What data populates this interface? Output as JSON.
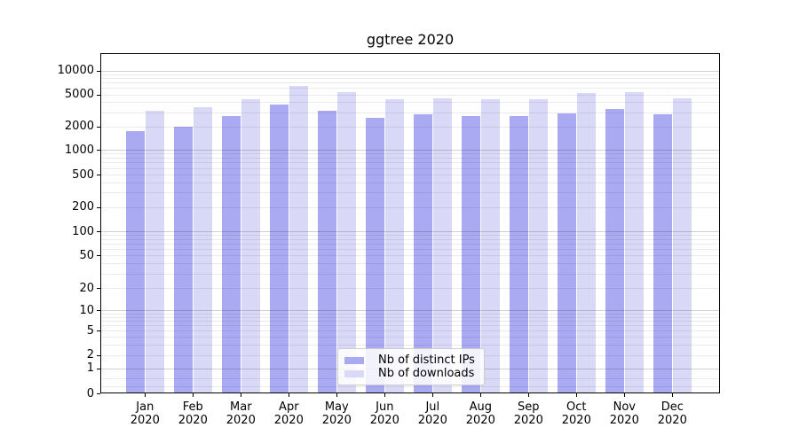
{
  "chart_data": {
    "type": "bar",
    "title": "ggtree 2020",
    "categories": [
      "Jan 2020",
      "Feb 2020",
      "Mar 2020",
      "Apr 2020",
      "May 2020",
      "Jun 2020",
      "Jul 2020",
      "Aug 2020",
      "Sep 2020",
      "Oct 2020",
      "Nov 2020",
      "Dec 2020"
    ],
    "series": [
      {
        "name": "Nb of distinct IPs",
        "color": "#aaaaf2",
        "values": [
          1750,
          2000,
          2700,
          3700,
          3100,
          2550,
          2800,
          2700,
          2700,
          2900,
          3300,
          2800
        ]
      },
      {
        "name": "Nb of downloads",
        "color": "#d9d9f7",
        "values": [
          3100,
          3450,
          4350,
          6300,
          5400,
          4300,
          4500,
          4350,
          4300,
          5250,
          5400,
          4450
        ]
      }
    ],
    "y_scale": "symlog (1-2-5 ticks, linear near zero)",
    "y_ticks": [
      0,
      1,
      2,
      5,
      10,
      20,
      50,
      100,
      200,
      500,
      1000,
      2000,
      5000,
      10000
    ],
    "y_tick_labels": [
      "0",
      "1",
      "2",
      "5",
      "10",
      "20",
      "50",
      "100",
      "200",
      "500",
      "1000",
      "2000",
      "5000",
      "10000"
    ],
    "ylim": [
      0,
      16000
    ],
    "xlabel": "",
    "ylabel": "",
    "grid": "horizontal, minor log gridlines, drawn over bars",
    "legend_position": "lower center inside plot"
  },
  "colors": {
    "background": "#ffffff",
    "bar_distinct_ips": "#aaaaf2",
    "bar_downloads": "#d9d9f7",
    "axis": "#000000",
    "grid_major": "#d1d1d1",
    "grid_minor": "#ebebeb",
    "legend_border": "#cccccc"
  }
}
